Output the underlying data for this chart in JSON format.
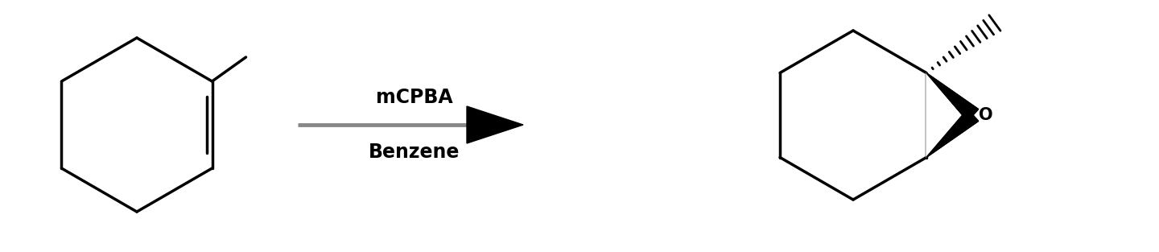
{
  "background_color": "#ffffff",
  "arrow_label_top": "mCPBA",
  "arrow_label_bottom": "Benzene",
  "arrow_label_color": "#000000",
  "fig_width": 14.4,
  "fig_height": 3.13
}
